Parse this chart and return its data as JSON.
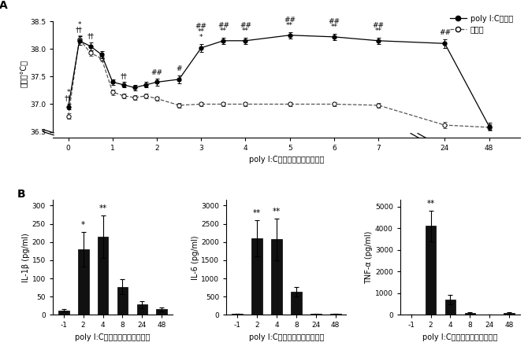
{
  "panel_A": {
    "x_positions": [
      0,
      0.25,
      0.5,
      0.75,
      1.0,
      1.25,
      1.5,
      1.75,
      2.0,
      2.5,
      3.0,
      3.5,
      4.0,
      5.0,
      6.0,
      7.0,
      24.0,
      48.0
    ],
    "poly_y": [
      36.95,
      38.15,
      38.05,
      37.9,
      37.4,
      37.35,
      37.3,
      37.35,
      37.4,
      37.45,
      38.02,
      38.15,
      38.15,
      38.25,
      38.22,
      38.15,
      38.1,
      36.6
    ],
    "poly_err": [
      0.05,
      0.08,
      0.07,
      0.06,
      0.05,
      0.05,
      0.05,
      0.05,
      0.06,
      0.07,
      0.07,
      0.06,
      0.06,
      0.06,
      0.06,
      0.06,
      0.08,
      0.07
    ],
    "ctrl_y": [
      36.78,
      38.18,
      37.93,
      37.83,
      37.22,
      37.15,
      37.12,
      37.15,
      37.1,
      36.98,
      37.0,
      37.0,
      37.0,
      37.0,
      37.0,
      36.98,
      36.62,
      36.58
    ],
    "ctrl_err": [
      0.05,
      0.06,
      0.05,
      0.05,
      0.05,
      0.04,
      0.04,
      0.04,
      0.04,
      0.04,
      0.04,
      0.04,
      0.04,
      0.04,
      0.04,
      0.04,
      0.06,
      0.06
    ],
    "yticks": [
      36.5,
      37.0,
      37.5,
      38.0,
      38.5
    ],
    "ylim": [
      36.4,
      38.7
    ],
    "xlabel": "poly I:C腹腔内投与後（時間）",
    "ylabel": "体温（°C）",
    "legend_poly": "poly I:C投与群",
    "legend_ctrl": "対照群",
    "xtick_vals": [
      0,
      1,
      2,
      3,
      4,
      5,
      6,
      7,
      8.5,
      9.5
    ],
    "xtick_labs": [
      "0",
      "1",
      "2",
      "3",
      "4",
      "5",
      "6",
      "7",
      "24",
      "48"
    ]
  },
  "panel_B_IL1b": {
    "x_labels": [
      "-1",
      "2",
      "4",
      "8",
      "24",
      "48"
    ],
    "values": [
      12,
      180,
      215,
      77,
      28,
      15
    ],
    "errors": [
      3,
      48,
      58,
      20,
      9,
      5
    ],
    "ylabel": "IL-1β (pg/ml)",
    "xlabel": "poly I:C腹腔内投与後（時間）",
    "yticks": [
      0,
      50,
      100,
      150,
      200,
      250,
      300
    ],
    "ylim": [
      0,
      315
    ],
    "annotations": {
      "2": "*",
      "4": "**"
    }
  },
  "panel_B_IL6": {
    "x_labels": [
      "-1",
      "2",
      "4",
      "8",
      "24",
      "48"
    ],
    "values": [
      30,
      2100,
      2070,
      640,
      22,
      28
    ],
    "errors": [
      10,
      490,
      570,
      125,
      8,
      8
    ],
    "ylabel": "IL-6 (pg/ml)",
    "xlabel": "poly I:C腹腔内投与後（時間）",
    "yticks": [
      0,
      500,
      1000,
      1500,
      2000,
      2500,
      3000
    ],
    "ylim": [
      0,
      3150
    ],
    "annotations": {
      "2": "**",
      "4": "**"
    }
  },
  "panel_B_TNFa": {
    "x_labels": [
      "-1",
      "2",
      "4",
      "8",
      "24",
      "48"
    ],
    "values": [
      18,
      4100,
      700,
      95,
      18,
      78
    ],
    "errors": [
      7,
      720,
      210,
      28,
      7,
      28
    ],
    "ylabel": "TNF-α (pg/ml)",
    "xlabel": "poly I:C腹腔内投与後（時間）",
    "yticks": [
      0,
      1000,
      2000,
      3000,
      4000,
      5000
    ],
    "ylim": [
      0,
      5300
    ],
    "annotations": {
      "2": "**"
    }
  },
  "bar_color": "#111111",
  "font_size_label": 7,
  "font_size_tick": 6.5,
  "font_size_annot": 7.5,
  "font_size_legend": 7
}
